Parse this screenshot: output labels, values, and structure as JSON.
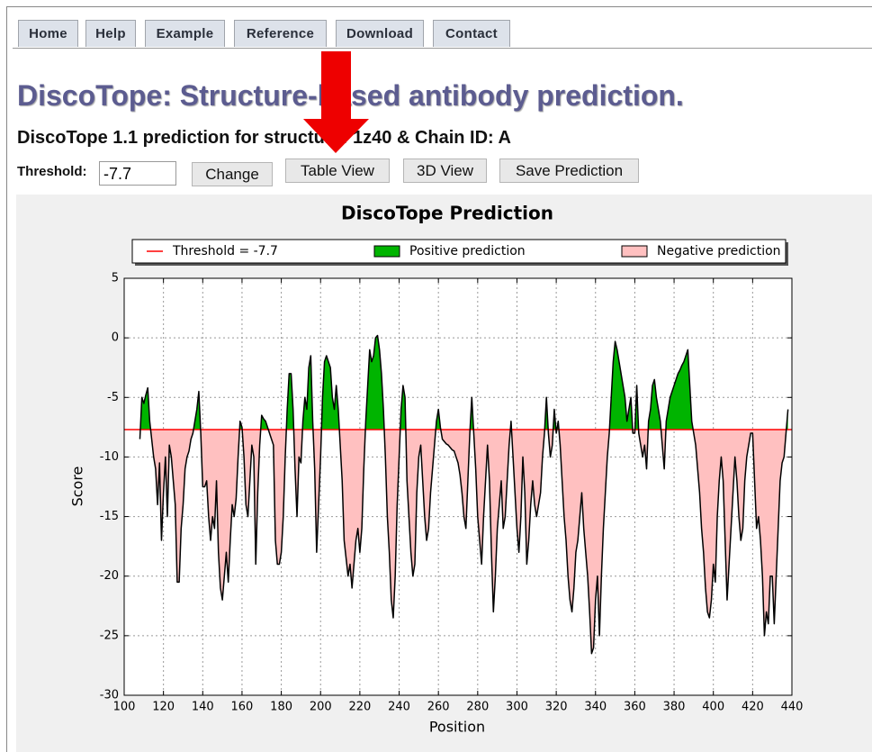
{
  "nav": {
    "tabs": [
      "Home",
      "Help",
      "Example",
      "Reference",
      "Download",
      "Contact"
    ]
  },
  "header": {
    "title": "DiscoTope: Structure-based antibody prediction.",
    "subtitle": "DiscoTope 1.1 prediction for structure: 1z40 & Chain ID: A"
  },
  "form": {
    "threshold_label": "Threshold:",
    "threshold_value": "-7.7",
    "buttons": [
      "Change",
      "Table View",
      "3D View",
      "Save Prediction"
    ]
  },
  "chart_data": {
    "type": "area",
    "title": "DiscoTope Prediction",
    "x_label": "Position",
    "y_label": "Score",
    "threshold": -7.7,
    "line_color": "#000000",
    "positive_color": "#00b400",
    "negative_color": "#ffc0c0",
    "threshold_color": "#ff0000",
    "legend": [
      {
        "label": "Threshold = -7.7",
        "color": "#ff0000"
      },
      {
        "label": "Positive prediction",
        "color": "#00b400"
      },
      {
        "label": "Negative prediction",
        "color": "#ffc0c0"
      }
    ],
    "legend_position": "upper center",
    "grid": true,
    "xlim": [
      100,
      440
    ],
    "xticks": [
      100,
      120,
      140,
      160,
      180,
      200,
      220,
      240,
      260,
      280,
      300,
      320,
      340,
      360,
      380,
      400,
      420,
      440
    ],
    "ylim": [
      -30,
      5
    ],
    "yticks": [
      -30,
      -25,
      -20,
      -15,
      -10,
      -5,
      0,
      5
    ],
    "x": [
      108,
      109,
      110,
      111,
      112,
      113,
      114,
      115,
      116,
      117,
      118,
      119,
      120,
      121,
      122,
      123,
      124,
      125,
      126,
      127,
      128,
      129,
      130,
      131,
      132,
      133,
      134,
      135,
      136,
      137,
      138,
      139,
      140,
      141,
      142,
      143,
      144,
      145,
      146,
      147,
      148,
      149,
      150,
      151,
      152,
      153,
      154,
      155,
      156,
      157,
      158,
      159,
      160,
      161,
      162,
      163,
      164,
      165,
      166,
      167,
      168,
      169,
      170,
      171,
      172,
      173,
      174,
      175,
      176,
      177,
      178,
      179,
      180,
      181,
      182,
      183,
      184,
      185,
      186,
      187,
      188,
      189,
      190,
      191,
      192,
      193,
      194,
      195,
      196,
      197,
      198,
      199,
      200,
      201,
      202,
      203,
      204,
      205,
      206,
      207,
      208,
      209,
      210,
      211,
      212,
      213,
      214,
      215,
      216,
      217,
      218,
      219,
      220,
      221,
      222,
      223,
      224,
      225,
      226,
      227,
      228,
      229,
      230,
      231,
      232,
      233,
      234,
      235,
      236,
      237,
      238,
      239,
      240,
      241,
      242,
      243,
      244,
      245,
      246,
      247,
      248,
      249,
      250,
      251,
      252,
      253,
      254,
      255,
      256,
      257,
      258,
      259,
      260,
      261,
      262,
      263,
      264,
      265,
      266,
      267,
      268,
      269,
      270,
      271,
      272,
      273,
      274,
      275,
      276,
      277,
      278,
      279,
      280,
      281,
      282,
      283,
      284,
      285,
      286,
      287,
      288,
      289,
      290,
      291,
      292,
      293,
      294,
      295,
      296,
      297,
      298,
      299,
      300,
      301,
      302,
      303,
      304,
      305,
      306,
      307,
      308,
      309,
      310,
      311,
      312,
      313,
      314,
      315,
      316,
      317,
      318,
      319,
      320,
      321,
      322,
      323,
      324,
      325,
      326,
      327,
      328,
      329,
      330,
      331,
      332,
      333,
      334,
      335,
      336,
      337,
      338,
      339,
      340,
      341,
      342,
      343,
      344,
      345,
      346,
      347,
      348,
      349,
      350,
      351,
      352,
      353,
      354,
      355,
      356,
      357,
      358,
      359,
      360,
      361,
      362,
      363,
      364,
      365,
      366,
      367,
      368,
      369,
      370,
      371,
      372,
      373,
      374,
      375,
      376,
      377,
      378,
      379,
      380,
      381,
      382,
      383,
      384,
      385,
      386,
      387,
      388,
      389,
      390,
      391,
      392,
      393,
      394,
      395,
      396,
      397,
      398,
      399,
      400,
      401,
      402,
      403,
      404,
      405,
      406,
      407,
      408,
      409,
      410,
      411,
      412,
      413,
      414,
      415,
      416,
      417,
      418,
      419,
      420,
      421,
      422,
      423,
      424,
      425,
      426,
      427,
      428,
      429,
      430,
      431,
      432,
      433,
      434,
      435,
      436,
      437,
      438
    ],
    "series": [
      {
        "values": [
          -8.5,
          -5,
          -5.5,
          -4.8,
          -4.2,
          -7,
          -8.5,
          -10,
          -11,
          -14,
          -10.5,
          -17,
          -13,
          -10,
          -15,
          -9,
          -10,
          -12,
          -14,
          -20.5,
          -20.5,
          -16,
          -14,
          -11,
          -10,
          -9.5,
          -8.5,
          -8,
          -7,
          -6,
          -4.5,
          -8,
          -12.5,
          -12.5,
          -12,
          -15,
          -17,
          -15,
          -16,
          -12,
          -18,
          -21,
          -22,
          -20,
          -18,
          -20.5,
          -17,
          -14,
          -15,
          -13.5,
          -10,
          -7,
          -7.5,
          -10,
          -14,
          -15,
          -12,
          -9,
          -10,
          -19,
          -13,
          -9,
          -6.5,
          -6.8,
          -7,
          -7.5,
          -8,
          -8.5,
          -9,
          -17,
          -19,
          -19,
          -18,
          -15,
          -10,
          -6,
          -3,
          -3,
          -6,
          -11,
          -15,
          -10,
          -10.5,
          -7,
          -5,
          -6,
          -2.5,
          -1.5,
          -7,
          -11,
          -18,
          -14,
          -10,
          -5,
          -2,
          -1.5,
          -2,
          -2.5,
          -5,
          -6,
          -4,
          -6,
          -9,
          -12,
          -17,
          -18.5,
          -20,
          -19,
          -21,
          -19,
          -17,
          -16,
          -18,
          -16,
          -11,
          -7,
          -4,
          -1,
          -2,
          -1.5,
          0,
          0.2,
          -1,
          -3,
          -6,
          -10,
          -15,
          -18,
          -22,
          -23.5,
          -20,
          -14,
          -10,
          -6,
          -4,
          -5,
          -12,
          -15,
          -18,
          -20,
          -19,
          -13,
          -10,
          -9,
          -12,
          -15,
          -17,
          -16,
          -13,
          -11,
          -9,
          -7,
          -6,
          -7.5,
          -8.5,
          -8.7,
          -8.9,
          -9,
          -9.2,
          -9.4,
          -9.5,
          -10,
          -10.5,
          -11.5,
          -13,
          -15,
          -16,
          -12,
          -8,
          -5,
          -8,
          -11,
          -15,
          -17,
          -19,
          -15,
          -12,
          -9,
          -12,
          -18,
          -23,
          -20,
          -16,
          -14,
          -12,
          -16,
          -15,
          -12,
          -9,
          -7,
          -10,
          -13,
          -16,
          -18,
          -15,
          -10,
          -13,
          -19,
          -17,
          -14,
          -12,
          -14,
          -15,
          -14,
          -13,
          -10,
          -8,
          -5,
          -8,
          -10,
          -9,
          -6,
          -8,
          -7,
          -9,
          -12,
          -15,
          -17,
          -20,
          -22,
          -23,
          -21,
          -18,
          -17,
          -15,
          -13,
          -16,
          -18,
          -20,
          -23,
          -26.5,
          -26,
          -22,
          -20,
          -25,
          -20,
          -16,
          -13,
          -10,
          -8,
          -5,
          -2,
          -0.3,
          -1,
          -2,
          -3,
          -4,
          -5,
          -7,
          -6,
          -5,
          -8,
          -8,
          -4,
          -8,
          -9,
          -10,
          -9,
          -11,
          -7,
          -6,
          -4,
          -3.5,
          -5,
          -6,
          -7,
          -9,
          -11,
          -7,
          -6,
          -5,
          -4.5,
          -4,
          -3.5,
          -3,
          -2.7,
          -2.3,
          -2,
          -1.5,
          -1,
          -4,
          -7,
          -8,
          -9,
          -11,
          -13,
          -16,
          -18,
          -21,
          -23,
          -23.5,
          -22,
          -19,
          -20.5,
          -15,
          -12,
          -10,
          -12,
          -17,
          -22,
          -19,
          -16,
          -13,
          -10,
          -12,
          -15,
          -17,
          -16,
          -12,
          -10,
          -9,
          -8,
          -8,
          -12,
          -16,
          -15,
          -17,
          -20,
          -25,
          -23,
          -24,
          -20,
          -20,
          -24,
          -20,
          -16,
          -12,
          -10.5,
          -10,
          -8,
          -6
        ]
      }
    ]
  }
}
